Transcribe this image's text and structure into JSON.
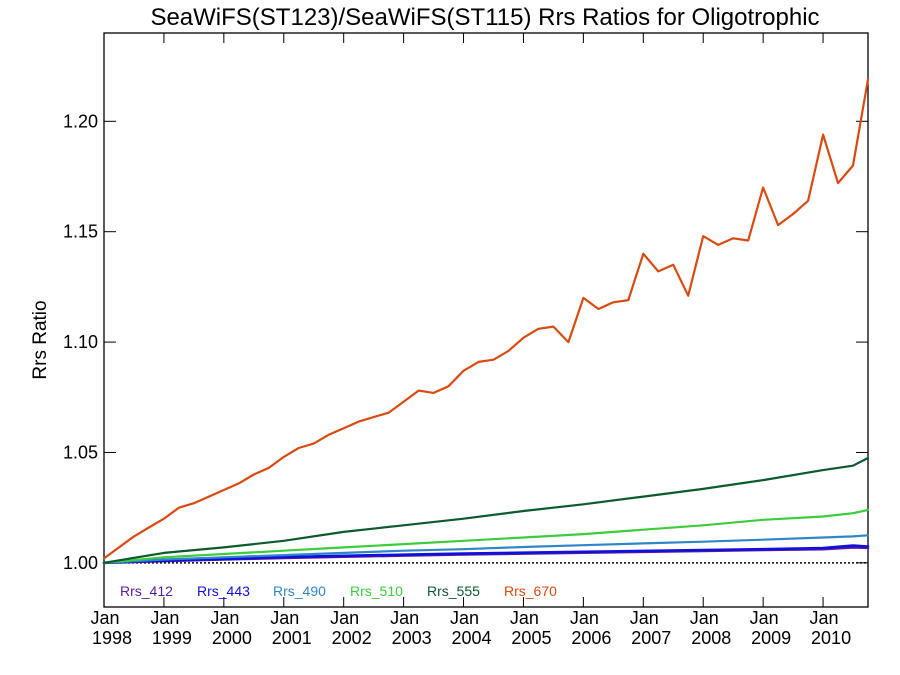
{
  "chart_data": {
    "type": "line",
    "title": "SeaWiFS(ST123)/SeaWiFS(ST115)  Rrs Ratios for Oligotrophic",
    "xlabel": "",
    "ylabel": "Rrs Ratio",
    "xlim": [
      1998.0,
      2010.75
    ],
    "ylim": [
      0.98,
      1.24
    ],
    "yticks": [
      1.0,
      1.05,
      1.1,
      1.15,
      1.2
    ],
    "ytick_labels": [
      "1.00",
      "1.05",
      "1.10",
      "1.15",
      "1.20"
    ],
    "xticks": [
      1998,
      1999,
      2000,
      2001,
      2002,
      2003,
      2004,
      2005,
      2006,
      2007,
      2008,
      2009,
      2010
    ],
    "xtick_month": "Jan",
    "xtick_years": [
      "1998",
      "1999",
      "2000",
      "2001",
      "2002",
      "2003",
      "2004",
      "2005",
      "2006",
      "2007",
      "2008",
      "2009",
      "2010"
    ],
    "reference_line": 1.0,
    "legend_position": "bottom-left inside plot",
    "grid": false,
    "series": [
      {
        "name": "Rrs_412",
        "color": "#5a1a9e",
        "x": [
          1998.0,
          1999.0,
          2000.0,
          2001.0,
          2002.0,
          2003.0,
          2004.0,
          2005.0,
          2006.0,
          2007.0,
          2008.0,
          2009.0,
          2010.0,
          2010.5,
          2010.75
        ],
        "y": [
          1.0,
          1.0008,
          1.0015,
          1.0022,
          1.0028,
          1.0033,
          1.0038,
          1.0042,
          1.0046,
          1.005,
          1.0054,
          1.0058,
          1.0062,
          1.007,
          1.0068
        ]
      },
      {
        "name": "Rrs_443",
        "color": "#1010dd",
        "x": [
          1998.0,
          1999.0,
          2000.0,
          2001.0,
          2002.0,
          2003.0,
          2004.0,
          2005.0,
          2006.0,
          2007.0,
          2008.0,
          2009.0,
          2010.0,
          2010.5,
          2010.75
        ],
        "y": [
          1.0,
          1.001,
          1.0018,
          1.0026,
          1.0032,
          1.0037,
          1.0042,
          1.0046,
          1.005,
          1.0054,
          1.0058,
          1.0062,
          1.0067,
          1.0078,
          1.0074
        ]
      },
      {
        "name": "Rrs_490",
        "color": "#2e86c8",
        "x": [
          1998.0,
          1999.0,
          2000.0,
          2001.0,
          2002.0,
          2003.0,
          2004.0,
          2005.0,
          2006.0,
          2007.0,
          2008.0,
          2009.0,
          2010.0,
          2010.5,
          2010.75
        ],
        "y": [
          1.0,
          1.0015,
          1.0025,
          1.0035,
          1.0045,
          1.0055,
          1.0062,
          1.0072,
          1.008,
          1.0088,
          1.0096,
          1.0105,
          1.0115,
          1.012,
          1.0125
        ]
      },
      {
        "name": "Rrs_510",
        "color": "#3ccc3c",
        "x": [
          1998.0,
          1999.0,
          2000.0,
          2001.0,
          2002.0,
          2003.0,
          2004.0,
          2005.0,
          2006.0,
          2007.0,
          2008.0,
          2009.0,
          2010.0,
          2010.5,
          2010.75
        ],
        "y": [
          1.0,
          1.0025,
          1.004,
          1.0055,
          1.007,
          1.0085,
          1.01,
          1.0115,
          1.013,
          1.015,
          1.017,
          1.0195,
          1.021,
          1.0225,
          1.024
        ]
      },
      {
        "name": "Rrs_555",
        "color": "#0d5a2c",
        "x": [
          1998.0,
          1999.0,
          2000.0,
          2001.0,
          2002.0,
          2003.0,
          2004.0,
          2005.0,
          2006.0,
          2007.0,
          2008.0,
          2009.0,
          2010.0,
          2010.5,
          2010.75
        ],
        "y": [
          1.0,
          1.0045,
          1.007,
          1.01,
          1.014,
          1.017,
          1.02,
          1.0235,
          1.0265,
          1.03,
          1.0335,
          1.0375,
          1.042,
          1.044,
          1.0475
        ]
      },
      {
        "name": "Rrs_670",
        "color": "#d94a10",
        "x": [
          1998.0,
          1998.25,
          1998.5,
          1998.75,
          1999.0,
          1999.25,
          1999.5,
          1999.75,
          2000.0,
          2000.25,
          2000.5,
          2000.75,
          2001.0,
          2001.25,
          2001.5,
          2001.75,
          2002.0,
          2002.25,
          2002.5,
          2002.75,
          2003.0,
          2003.25,
          2003.5,
          2003.75,
          2004.0,
          2004.25,
          2004.5,
          2004.75,
          2005.0,
          2005.25,
          2005.5,
          2005.75,
          2006.0,
          2006.25,
          2006.5,
          2006.75,
          2007.0,
          2007.25,
          2007.5,
          2007.75,
          2008.0,
          2008.25,
          2008.5,
          2008.75,
          2009.0,
          2009.25,
          2009.5,
          2009.75,
          2010.0,
          2010.25,
          2010.5,
          2010.75
        ],
        "y": [
          1.002,
          1.007,
          1.012,
          1.016,
          1.02,
          1.025,
          1.027,
          1.03,
          1.033,
          1.036,
          1.04,
          1.043,
          1.048,
          1.052,
          1.054,
          1.058,
          1.061,
          1.064,
          1.066,
          1.068,
          1.073,
          1.078,
          1.077,
          1.08,
          1.087,
          1.091,
          1.092,
          1.096,
          1.102,
          1.106,
          1.107,
          1.1,
          1.12,
          1.115,
          1.118,
          1.119,
          1.14,
          1.132,
          1.135,
          1.121,
          1.148,
          1.144,
          1.147,
          1.146,
          1.17,
          1.153,
          1.158,
          1.164,
          1.194,
          1.172,
          1.18,
          1.219
        ]
      }
    ]
  }
}
